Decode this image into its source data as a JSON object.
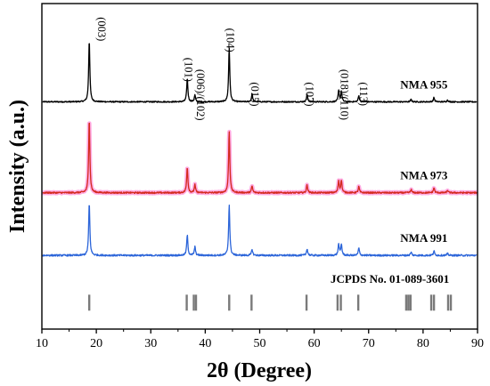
{
  "chart_data": {
    "type": "line",
    "xlabel": "2θ (Degree)",
    "ylabel": "Intensity (a.u.)",
    "xlim": [
      10,
      90
    ],
    "xticks": [
      10,
      20,
      30,
      40,
      50,
      60,
      70,
      80,
      90
    ],
    "yticks_shown": false,
    "grid": false,
    "series": [
      {
        "name": "NMA 955",
        "color": "#000000",
        "noise": 0.01,
        "offset": 3.4,
        "peaks": [
          {
            "x": 18.7,
            "h": 1.0
          },
          {
            "x": 36.7,
            "h": 0.38
          },
          {
            "x": 38.1,
            "h": 0.11
          },
          {
            "x": 44.4,
            "h": 0.88
          },
          {
            "x": 48.6,
            "h": 0.13
          },
          {
            "x": 58.7,
            "h": 0.12
          },
          {
            "x": 64.5,
            "h": 0.18
          },
          {
            "x": 65.0,
            "h": 0.16
          },
          {
            "x": 68.2,
            "h": 0.1
          },
          {
            "x": 77.8,
            "h": 0.04
          },
          {
            "x": 82.0,
            "h": 0.07
          },
          {
            "x": 84.5,
            "h": 0.03
          }
        ]
      },
      {
        "name": "NMA 973",
        "color": "#d42a1e",
        "glow": "#ff66cc",
        "noise": 0.012,
        "offset": 1.92,
        "peaks": [
          {
            "x": 18.7,
            "h": 1.2
          },
          {
            "x": 36.7,
            "h": 0.42
          },
          {
            "x": 38.1,
            "h": 0.13
          },
          {
            "x": 44.4,
            "h": 1.0
          },
          {
            "x": 48.6,
            "h": 0.11
          },
          {
            "x": 58.7,
            "h": 0.13
          },
          {
            "x": 64.5,
            "h": 0.19
          },
          {
            "x": 65.0,
            "h": 0.2
          },
          {
            "x": 68.2,
            "h": 0.1
          },
          {
            "x": 77.8,
            "h": 0.05
          },
          {
            "x": 82.0,
            "h": 0.08
          },
          {
            "x": 84.5,
            "h": 0.04
          }
        ]
      },
      {
        "name": "NMA 991",
        "color": "#2c65d9",
        "noise": 0.014,
        "offset": 0.9,
        "peaks": [
          {
            "x": 18.7,
            "h": 0.85
          },
          {
            "x": 36.7,
            "h": 0.33
          },
          {
            "x": 38.1,
            "h": 0.14
          },
          {
            "x": 44.4,
            "h": 0.82
          },
          {
            "x": 48.6,
            "h": 0.1
          },
          {
            "x": 58.7,
            "h": 0.11
          },
          {
            "x": 64.5,
            "h": 0.18
          },
          {
            "x": 65.0,
            "h": 0.18
          },
          {
            "x": 68.2,
            "h": 0.12
          },
          {
            "x": 77.8,
            "h": 0.05
          },
          {
            "x": 82.0,
            "h": 0.07
          },
          {
            "x": 84.5,
            "h": 0.03
          }
        ]
      }
    ],
    "reference": {
      "name": "JCPDS No. 01-089-3601",
      "color": "#7a7a7a",
      "offset": 0.0,
      "lines": [
        {
          "x": 18.7,
          "h": 0.26
        },
        {
          "x": 36.6,
          "h": 0.26
        },
        {
          "x": 37.9,
          "h": 0.26
        },
        {
          "x": 38.3,
          "h": 0.26
        },
        {
          "x": 44.4,
          "h": 0.26
        },
        {
          "x": 48.5,
          "h": 0.26
        },
        {
          "x": 58.6,
          "h": 0.26
        },
        {
          "x": 64.3,
          "h": 0.26
        },
        {
          "x": 64.9,
          "h": 0.26
        },
        {
          "x": 68.1,
          "h": 0.26
        },
        {
          "x": 76.9,
          "h": 0.26
        },
        {
          "x": 77.3,
          "h": 0.26
        },
        {
          "x": 77.7,
          "h": 0.26
        },
        {
          "x": 81.5,
          "h": 0.26
        },
        {
          "x": 82.0,
          "h": 0.26
        },
        {
          "x": 84.6,
          "h": 0.26
        },
        {
          "x": 85.1,
          "h": 0.26
        }
      ]
    },
    "peak_labels": [
      {
        "text": "(003)",
        "x": 20.8,
        "y": 4.78
      },
      {
        "text": "(101)",
        "x": 36.7,
        "y": 4.12
      },
      {
        "text": "(006)/(102)",
        "x": 38.9,
        "y": 3.93
      },
      {
        "text": "(104)",
        "x": 44.4,
        "y": 4.6
      },
      {
        "text": "(015)",
        "x": 48.9,
        "y": 3.72
      },
      {
        "text": "(107)",
        "x": 59.0,
        "y": 3.72
      },
      {
        "text": "(018)/(110)",
        "x": 65.4,
        "y": 3.93
      },
      {
        "text": "(113)",
        "x": 68.9,
        "y": 3.72
      }
    ]
  }
}
